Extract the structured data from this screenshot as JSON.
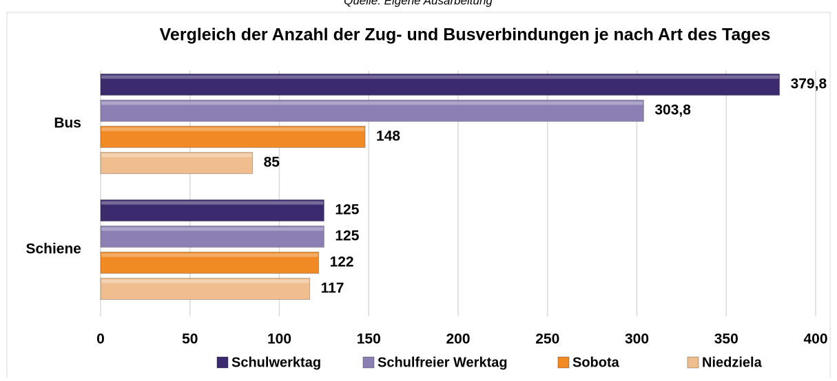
{
  "chart_data": {
    "type": "bar",
    "orientation": "horizontal",
    "subtitle": "Quelle: Eigene Ausarbeitung",
    "title": "Vergleich der Anzahl der Zug- und Busverbindungen je nach Art des Tages",
    "categories": [
      "Bus",
      "Schiene"
    ],
    "series": [
      {
        "name": "Schulwerktag",
        "color": "#3b2a6e",
        "values": [
          379.8,
          125
        ],
        "value_labels": [
          "379,8",
          "125"
        ]
      },
      {
        "name": "Schulfreier Werktag",
        "color": "#8c7fb3",
        "values": [
          303.8,
          125
        ],
        "value_labels": [
          "303,8",
          "125"
        ]
      },
      {
        "name": "Sobota",
        "color": "#f08a24",
        "values": [
          148,
          122
        ]
      },
      {
        "name": "Niedziela",
        "color": "#f0be8e",
        "values": [
          85,
          117
        ]
      }
    ],
    "xlim": [
      0,
      400
    ],
    "xticks": [
      0,
      50,
      100,
      150,
      200,
      250,
      300,
      350,
      400
    ],
    "grid": true,
    "legend": "bottom"
  }
}
